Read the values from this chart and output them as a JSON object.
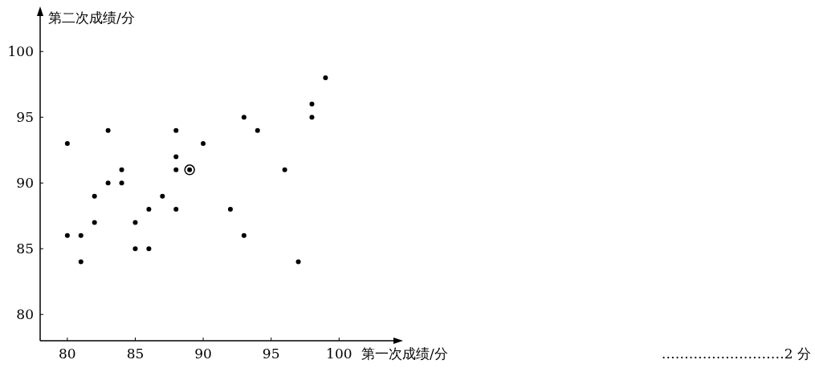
{
  "chart_data": {
    "type": "scatter",
    "xlabel": "第一次成绩/分",
    "ylabel": "第二次成绩/分",
    "series": [
      {
        "color": "#000000",
        "marker": "circle",
        "x": [
          80,
          80,
          81,
          81,
          82,
          82,
          83,
          83,
          84,
          84,
          85,
          85,
          86,
          86,
          87,
          88,
          88,
          88,
          88,
          90,
          92,
          93,
          93,
          94,
          96,
          97,
          98,
          98,
          99
        ],
        "values": [
          86,
          93,
          86,
          84,
          89,
          87,
          94,
          90,
          91,
          90,
          87,
          85,
          88,
          85,
          89,
          94,
          92,
          91,
          88,
          93,
          88,
          95,
          86,
          94,
          91,
          84,
          96,
          95,
          98
        ]
      },
      {
        "color": "#000000",
        "marker": "circled",
        "x": [
          89
        ],
        "values": [
          91
        ]
      }
    ],
    "xlim": [
      78,
      104
    ],
    "ylim": [
      78,
      102.7
    ],
    "xticks": [
      80,
      85,
      90,
      95,
      100
    ],
    "yticks": [
      80,
      85,
      90,
      95,
      100
    ],
    "annotations": [
      "………………………2 分"
    ]
  }
}
